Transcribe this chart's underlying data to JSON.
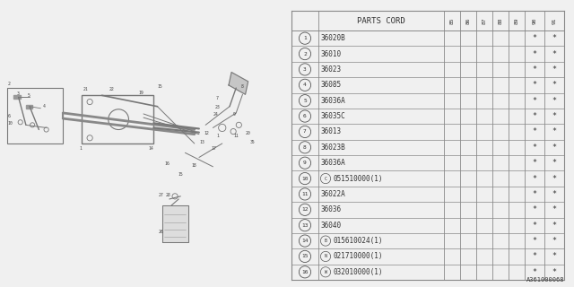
{
  "bg_color": "#f0f0f0",
  "table_bg": "#f0f0f0",
  "header": "PARTS CORD",
  "year_labels": [
    "85",
    "86",
    "87",
    "88",
    "89",
    "90",
    "91"
  ],
  "rows": [
    [
      "1",
      "",
      "36020B"
    ],
    [
      "2",
      "",
      "36010"
    ],
    [
      "3",
      "",
      "36023"
    ],
    [
      "4",
      "",
      "36085"
    ],
    [
      "5",
      "",
      "36036A"
    ],
    [
      "6",
      "",
      "36035C"
    ],
    [
      "7",
      "",
      "36013"
    ],
    [
      "8",
      "",
      "36023B"
    ],
    [
      "9",
      "",
      "36036A"
    ],
    [
      "10",
      "C",
      "051510000(1)"
    ],
    [
      "11",
      "",
      "36022A"
    ],
    [
      "12",
      "",
      "36036"
    ],
    [
      "13",
      "",
      "36040"
    ],
    [
      "14",
      "B",
      "015610024(1)"
    ],
    [
      "15",
      "N",
      "021710000(1)"
    ],
    [
      "16",
      "W",
      "032010000(1)"
    ]
  ],
  "star_cols": [
    5,
    6
  ],
  "footer": "A361000068",
  "border_color": "#aaaaaa",
  "text_color": "#333333"
}
